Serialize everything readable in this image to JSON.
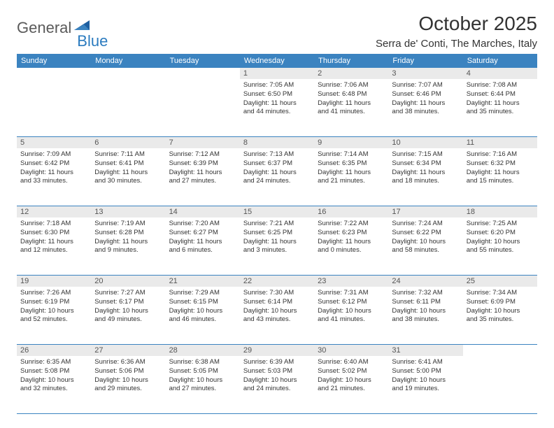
{
  "logo": {
    "text1": "General",
    "text2": "Blue"
  },
  "title": "October 2025",
  "location": "Serra de' Conti, The Marches, Italy",
  "header_bg": "#3b83c0",
  "daynum_bg": "#eaeaea",
  "weekdays": [
    "Sunday",
    "Monday",
    "Tuesday",
    "Wednesday",
    "Thursday",
    "Friday",
    "Saturday"
  ],
  "weeks": [
    {
      "nums": [
        "",
        "",
        "",
        "1",
        "2",
        "3",
        "4"
      ],
      "cells": [
        null,
        null,
        null,
        {
          "sunrise": "7:05 AM",
          "sunset": "6:50 PM",
          "dl1": "Daylight: 11 hours",
          "dl2": "and 44 minutes."
        },
        {
          "sunrise": "7:06 AM",
          "sunset": "6:48 PM",
          "dl1": "Daylight: 11 hours",
          "dl2": "and 41 minutes."
        },
        {
          "sunrise": "7:07 AM",
          "sunset": "6:46 PM",
          "dl1": "Daylight: 11 hours",
          "dl2": "and 38 minutes."
        },
        {
          "sunrise": "7:08 AM",
          "sunset": "6:44 PM",
          "dl1": "Daylight: 11 hours",
          "dl2": "and 35 minutes."
        }
      ]
    },
    {
      "nums": [
        "5",
        "6",
        "7",
        "8",
        "9",
        "10",
        "11"
      ],
      "cells": [
        {
          "sunrise": "7:09 AM",
          "sunset": "6:42 PM",
          "dl1": "Daylight: 11 hours",
          "dl2": "and 33 minutes."
        },
        {
          "sunrise": "7:11 AM",
          "sunset": "6:41 PM",
          "dl1": "Daylight: 11 hours",
          "dl2": "and 30 minutes."
        },
        {
          "sunrise": "7:12 AM",
          "sunset": "6:39 PM",
          "dl1": "Daylight: 11 hours",
          "dl2": "and 27 minutes."
        },
        {
          "sunrise": "7:13 AM",
          "sunset": "6:37 PM",
          "dl1": "Daylight: 11 hours",
          "dl2": "and 24 minutes."
        },
        {
          "sunrise": "7:14 AM",
          "sunset": "6:35 PM",
          "dl1": "Daylight: 11 hours",
          "dl2": "and 21 minutes."
        },
        {
          "sunrise": "7:15 AM",
          "sunset": "6:34 PM",
          "dl1": "Daylight: 11 hours",
          "dl2": "and 18 minutes."
        },
        {
          "sunrise": "7:16 AM",
          "sunset": "6:32 PM",
          "dl1": "Daylight: 11 hours",
          "dl2": "and 15 minutes."
        }
      ]
    },
    {
      "nums": [
        "12",
        "13",
        "14",
        "15",
        "16",
        "17",
        "18"
      ],
      "cells": [
        {
          "sunrise": "7:18 AM",
          "sunset": "6:30 PM",
          "dl1": "Daylight: 11 hours",
          "dl2": "and 12 minutes."
        },
        {
          "sunrise": "7:19 AM",
          "sunset": "6:28 PM",
          "dl1": "Daylight: 11 hours",
          "dl2": "and 9 minutes."
        },
        {
          "sunrise": "7:20 AM",
          "sunset": "6:27 PM",
          "dl1": "Daylight: 11 hours",
          "dl2": "and 6 minutes."
        },
        {
          "sunrise": "7:21 AM",
          "sunset": "6:25 PM",
          "dl1": "Daylight: 11 hours",
          "dl2": "and 3 minutes."
        },
        {
          "sunrise": "7:22 AM",
          "sunset": "6:23 PM",
          "dl1": "Daylight: 11 hours",
          "dl2": "and 0 minutes."
        },
        {
          "sunrise": "7:24 AM",
          "sunset": "6:22 PM",
          "dl1": "Daylight: 10 hours",
          "dl2": "and 58 minutes."
        },
        {
          "sunrise": "7:25 AM",
          "sunset": "6:20 PM",
          "dl1": "Daylight: 10 hours",
          "dl2": "and 55 minutes."
        }
      ]
    },
    {
      "nums": [
        "19",
        "20",
        "21",
        "22",
        "23",
        "24",
        "25"
      ],
      "cells": [
        {
          "sunrise": "7:26 AM",
          "sunset": "6:19 PM",
          "dl1": "Daylight: 10 hours",
          "dl2": "and 52 minutes."
        },
        {
          "sunrise": "7:27 AM",
          "sunset": "6:17 PM",
          "dl1": "Daylight: 10 hours",
          "dl2": "and 49 minutes."
        },
        {
          "sunrise": "7:29 AM",
          "sunset": "6:15 PM",
          "dl1": "Daylight: 10 hours",
          "dl2": "and 46 minutes."
        },
        {
          "sunrise": "7:30 AM",
          "sunset": "6:14 PM",
          "dl1": "Daylight: 10 hours",
          "dl2": "and 43 minutes."
        },
        {
          "sunrise": "7:31 AM",
          "sunset": "6:12 PM",
          "dl1": "Daylight: 10 hours",
          "dl2": "and 41 minutes."
        },
        {
          "sunrise": "7:32 AM",
          "sunset": "6:11 PM",
          "dl1": "Daylight: 10 hours",
          "dl2": "and 38 minutes."
        },
        {
          "sunrise": "7:34 AM",
          "sunset": "6:09 PM",
          "dl1": "Daylight: 10 hours",
          "dl2": "and 35 minutes."
        }
      ]
    },
    {
      "nums": [
        "26",
        "27",
        "28",
        "29",
        "30",
        "31",
        ""
      ],
      "cells": [
        {
          "sunrise": "6:35 AM",
          "sunset": "5:08 PM",
          "dl1": "Daylight: 10 hours",
          "dl2": "and 32 minutes."
        },
        {
          "sunrise": "6:36 AM",
          "sunset": "5:06 PM",
          "dl1": "Daylight: 10 hours",
          "dl2": "and 29 minutes."
        },
        {
          "sunrise": "6:38 AM",
          "sunset": "5:05 PM",
          "dl1": "Daylight: 10 hours",
          "dl2": "and 27 minutes."
        },
        {
          "sunrise": "6:39 AM",
          "sunset": "5:03 PM",
          "dl1": "Daylight: 10 hours",
          "dl2": "and 24 minutes."
        },
        {
          "sunrise": "6:40 AM",
          "sunset": "5:02 PM",
          "dl1": "Daylight: 10 hours",
          "dl2": "and 21 minutes."
        },
        {
          "sunrise": "6:41 AM",
          "sunset": "5:00 PM",
          "dl1": "Daylight: 10 hours",
          "dl2": "and 19 minutes."
        },
        null
      ]
    }
  ]
}
